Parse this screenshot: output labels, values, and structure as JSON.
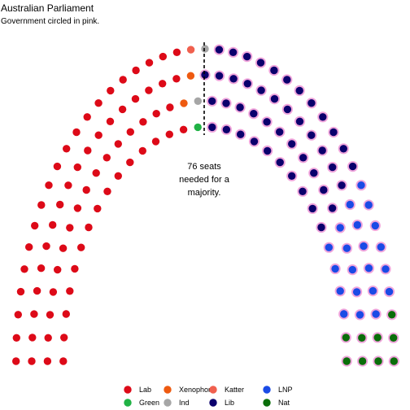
{
  "title": "Australian Parliament",
  "subtitle": "Government circled in pink.",
  "annotation": [
    "76 seats",
    "needed for a",
    "majority."
  ],
  "chart_data": {
    "type": "parliament",
    "title": "Australian Parliament",
    "subtitle": "Government circled in pink.",
    "total_seats": 150,
    "majority": 76,
    "government_outline_color": "#f0a5dc",
    "majority_line": "dashed vertical line at centre",
    "parties": [
      {
        "name": "Lab",
        "seats": 69,
        "color": "#dd0a18",
        "government": false
      },
      {
        "name": "Xenophon",
        "seats": 2,
        "color": "#ee5a10",
        "government": false
      },
      {
        "name": "Katter",
        "seats": 1,
        "color": "#f0604e",
        "government": false
      },
      {
        "name": "Green",
        "seats": 1,
        "color": "#20b245",
        "government": false
      },
      {
        "name": "Ind",
        "seats": 2,
        "color": "#a6a6a6",
        "government": false
      },
      {
        "name": "Lib",
        "seats": 45,
        "color": "#0b006d",
        "government": true
      },
      {
        "name": "LNP",
        "seats": 21,
        "color": "#1a4be6",
        "government": true
      },
      {
        "name": "Nat",
        "seats": 9,
        "color": "#0a6e0a",
        "government": true
      }
    ],
    "legend": {
      "placement": "bottom",
      "entries": [
        "Lab",
        "Xenophon",
        "Katter",
        "LNP",
        "Green",
        "Ind",
        "Lib",
        "Nat"
      ]
    }
  }
}
